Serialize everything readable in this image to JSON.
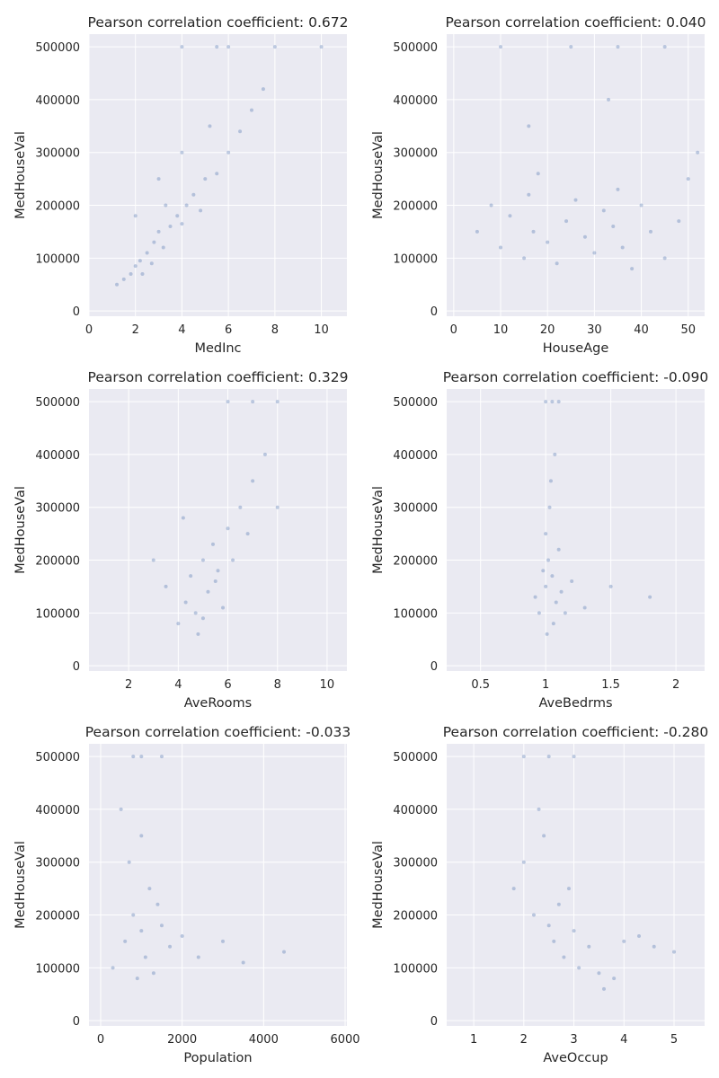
{
  "chart_data": [
    {
      "type": "scatter",
      "title": "Pearson correlation coefficient: 0.672",
      "xlabel": "MedInc",
      "ylabel": "MedHouseVal",
      "xlim": [
        0,
        11.1
      ],
      "ylim": [
        -10000,
        524000
      ],
      "xticks": [
        0,
        2,
        4,
        6,
        8,
        10
      ],
      "yticks": [
        0,
        100000,
        200000,
        300000,
        400000,
        500000
      ],
      "grid": true,
      "points": [
        [
          1.5,
          60000
        ],
        [
          1.8,
          70000
        ],
        [
          2.0,
          85000
        ],
        [
          2.2,
          95000
        ],
        [
          2.5,
          110000
        ],
        [
          2.8,
          130000
        ],
        [
          3.0,
          150000
        ],
        [
          3.2,
          120000
        ],
        [
          3.5,
          160000
        ],
        [
          3.8,
          180000
        ],
        [
          4.0,
          165000
        ],
        [
          4.2,
          200000
        ],
        [
          4.5,
          220000
        ],
        [
          4.8,
          190000
        ],
        [
          5.0,
          250000
        ],
        [
          5.5,
          260000
        ],
        [
          6.0,
          300000
        ],
        [
          6.5,
          340000
        ],
        [
          7.0,
          380000
        ],
        [
          7.5,
          420000
        ],
        [
          2.3,
          70000
        ],
        [
          2.7,
          90000
        ],
        [
          3.3,
          200000
        ],
        [
          4.0,
          300000
        ],
        [
          5.2,
          350000
        ],
        [
          1.2,
          50000
        ],
        [
          2.0,
          180000
        ],
        [
          3.0,
          250000
        ],
        [
          6.0,
          500000
        ],
        [
          8.0,
          500000
        ],
        [
          10.0,
          500000
        ],
        [
          4.0,
          500000
        ],
        [
          5.5,
          500000
        ]
      ]
    },
    {
      "type": "scatter",
      "title": "Pearson correlation coefficient: 0.040",
      "xlabel": "HouseAge",
      "ylabel": "MedHouseVal",
      "xlim": [
        -1.5,
        53.5
      ],
      "ylim": [
        -10000,
        524000
      ],
      "xticks": [
        0,
        10,
        20,
        30,
        40,
        50
      ],
      "yticks": [
        0,
        100000,
        200000,
        300000,
        400000,
        500000
      ],
      "grid": true,
      "points": [
        [
          5,
          150000
        ],
        [
          8,
          200000
        ],
        [
          10,
          120000
        ],
        [
          12,
          180000
        ],
        [
          15,
          100000
        ],
        [
          16,
          220000
        ],
        [
          17,
          150000
        ],
        [
          18,
          260000
        ],
        [
          20,
          130000
        ],
        [
          22,
          90000
        ],
        [
          24,
          170000
        ],
        [
          26,
          210000
        ],
        [
          28,
          140000
        ],
        [
          30,
          110000
        ],
        [
          32,
          190000
        ],
        [
          34,
          160000
        ],
        [
          35,
          230000
        ],
        [
          36,
          120000
        ],
        [
          38,
          80000
        ],
        [
          40,
          200000
        ],
        [
          42,
          150000
        ],
        [
          45,
          100000
        ],
        [
          48,
          170000
        ],
        [
          50,
          250000
        ],
        [
          52,
          300000
        ],
        [
          16,
          350000
        ],
        [
          33,
          400000
        ],
        [
          25,
          500000
        ],
        [
          35,
          500000
        ],
        [
          45,
          500000
        ],
        [
          10,
          500000
        ]
      ]
    },
    {
      "type": "scatter",
      "title": "Pearson correlation coefficient: 0.329",
      "xlabel": "AveRooms",
      "ylabel": "MedHouseVal",
      "xlim": [
        0.4,
        10.8
      ],
      "ylim": [
        -10000,
        524000
      ],
      "xticks": [
        2,
        4,
        6,
        8,
        10
      ],
      "yticks": [
        0,
        100000,
        200000,
        300000,
        400000,
        500000
      ],
      "grid": true,
      "points": [
        [
          3.5,
          150000
        ],
        [
          4.0,
          80000
        ],
        [
          4.3,
          120000
        ],
        [
          4.5,
          170000
        ],
        [
          4.7,
          100000
        ],
        [
          5.0,
          200000
        ],
        [
          5.0,
          90000
        ],
        [
          5.2,
          140000
        ],
        [
          5.4,
          230000
        ],
        [
          5.6,
          180000
        ],
        [
          5.8,
          110000
        ],
        [
          6.0,
          260000
        ],
        [
          6.2,
          200000
        ],
        [
          6.5,
          300000
        ],
        [
          7.0,
          350000
        ],
        [
          7.5,
          400000
        ],
        [
          3.0,
          200000
        ],
        [
          4.8,
          60000
        ],
        [
          5.5,
          160000
        ],
        [
          6.8,
          250000
        ],
        [
          8.0,
          300000
        ],
        [
          4.2,
          280000
        ],
        [
          7.0,
          500000
        ],
        [
          8.0,
          500000
        ],
        [
          6.0,
          500000
        ]
      ]
    },
    {
      "type": "scatter",
      "title": "Pearson correlation coefficient: -0.090",
      "xlabel": "AveBedrms",
      "ylabel": "MedHouseVal",
      "xlim": [
        0.24,
        2.22
      ],
      "ylim": [
        -10000,
        524000
      ],
      "xticks": [
        0.5,
        1.0,
        1.5,
        2.0
      ],
      "yticks": [
        0,
        100000,
        200000,
        300000,
        400000,
        500000
      ],
      "grid": true,
      "points": [
        [
          0.95,
          100000
        ],
        [
          1.0,
          150000
        ],
        [
          1.02,
          200000
        ],
        [
          1.05,
          170000
        ],
        [
          1.08,
          120000
        ],
        [
          1.0,
          250000
        ],
        [
          1.03,
          300000
        ],
        [
          1.06,
          80000
        ],
        [
          1.1,
          220000
        ],
        [
          0.98,
          180000
        ],
        [
          1.04,
          350000
        ],
        [
          1.07,
          400000
        ],
        [
          1.01,
          60000
        ],
        [
          1.12,
          140000
        ],
        [
          1.15,
          100000
        ],
        [
          1.2,
          160000
        ],
        [
          0.92,
          130000
        ],
        [
          1.3,
          110000
        ],
        [
          1.5,
          150000
        ],
        [
          1.8,
          130000
        ],
        [
          1.0,
          500000
        ],
        [
          1.05,
          500000
        ],
        [
          1.1,
          500000
        ]
      ]
    },
    {
      "type": "scatter",
      "title": "Pearson correlation coefficient: -0.033",
      "xlabel": "Population",
      "ylabel": "MedHouseVal",
      "xlim": [
        -286,
        6044
      ],
      "ylim": [
        -10000,
        524000
      ],
      "xticks": [
        0,
        2000,
        4000,
        6000
      ],
      "yticks": [
        0,
        100000,
        200000,
        300000,
        400000,
        500000
      ],
      "grid": true,
      "points": [
        [
          300,
          100000
        ],
        [
          600,
          150000
        ],
        [
          800,
          200000
        ],
        [
          900,
          80000
        ],
        [
          1000,
          170000
        ],
        [
          1100,
          120000
        ],
        [
          1200,
          250000
        ],
        [
          1300,
          90000
        ],
        [
          1500,
          180000
        ],
        [
          1700,
          140000
        ],
        [
          2000,
          160000
        ],
        [
          2400,
          120000
        ],
        [
          3000,
          150000
        ],
        [
          3500,
          110000
        ],
        [
          4500,
          130000
        ],
        [
          700,
          300000
        ],
        [
          1000,
          350000
        ],
        [
          500,
          400000
        ],
        [
          1400,
          220000
        ],
        [
          800,
          500000
        ],
        [
          1000,
          500000
        ],
        [
          1500,
          500000
        ]
      ]
    },
    {
      "type": "scatter",
      "title": "Pearson correlation coefficient: -0.280",
      "xlabel": "AveOccup",
      "ylabel": "MedHouseVal",
      "xlim": [
        0.46,
        5.61
      ],
      "ylim": [
        -10000,
        524000
      ],
      "xticks": [
        1,
        2,
        3,
        4,
        5
      ],
      "yticks": [
        0,
        100000,
        200000,
        300000,
        400000,
        500000
      ],
      "grid": true,
      "points": [
        [
          1.8,
          250000
        ],
        [
          2.0,
          300000
        ],
        [
          2.2,
          200000
        ],
        [
          2.4,
          350000
        ],
        [
          2.5,
          180000
        ],
        [
          2.6,
          150000
        ],
        [
          2.7,
          220000
        ],
        [
          2.8,
          120000
        ],
        [
          3.0,
          170000
        ],
        [
          3.1,
          100000
        ],
        [
          3.3,
          140000
        ],
        [
          3.5,
          90000
        ],
        [
          3.8,
          80000
        ],
        [
          4.0,
          150000
        ],
        [
          4.3,
          160000
        ],
        [
          4.6,
          140000
        ],
        [
          5.0,
          130000
        ],
        [
          2.3,
          400000
        ],
        [
          2.9,
          250000
        ],
        [
          3.6,
          60000
        ],
        [
          2.0,
          500000
        ],
        [
          2.5,
          500000
        ],
        [
          3.0,
          500000
        ]
      ]
    }
  ]
}
